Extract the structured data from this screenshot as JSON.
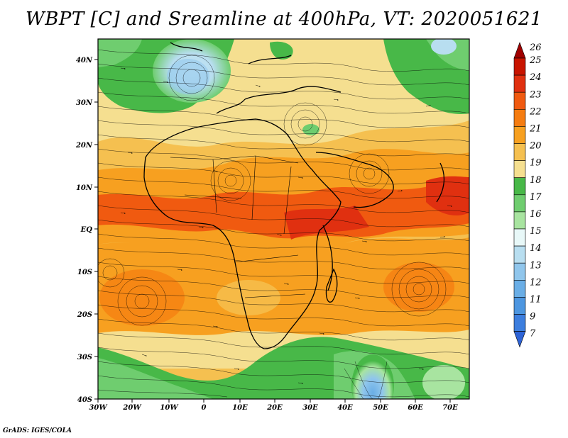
{
  "title": "WBPT [C] and Sreamline at 400hPa, VT: 2020051621",
  "credit": "GrADS: IGES/COLA",
  "map": {
    "lon_labels": [
      "30W",
      "20W",
      "10W",
      "0",
      "10E",
      "20E",
      "30E",
      "40E",
      "50E",
      "60E",
      "70E"
    ],
    "lat_labels": [
      "40N",
      "30N",
      "20N",
      "10N",
      "EQ",
      "10S",
      "20S",
      "30S",
      "40S"
    ],
    "fields": [
      {
        "name": "cold-pool-northwest",
        "value": 14
      },
      {
        "name": "warm-band-equatorial",
        "value": 23
      },
      {
        "name": "cold-pool-south-indian",
        "value": 12
      }
    ]
  },
  "colorbar": {
    "labels": [
      "26",
      "25",
      "24",
      "23",
      "22",
      "21",
      "20",
      "19",
      "18",
      "17",
      "16",
      "15",
      "14",
      "13",
      "12",
      "11",
      "9",
      "7"
    ],
    "colors": [
      "#a00000",
      "#c81400",
      "#e03010",
      "#f05a10",
      "#f57c10",
      "#f7a020",
      "#f5c050",
      "#f5df90",
      "#48b848",
      "#6fcd6f",
      "#a8e4a0",
      "#e8f8f8",
      "#b8def0",
      "#90c6ec",
      "#6aaee6",
      "#4d96e0",
      "#3c7ede",
      "#2d63d6"
    ]
  }
}
